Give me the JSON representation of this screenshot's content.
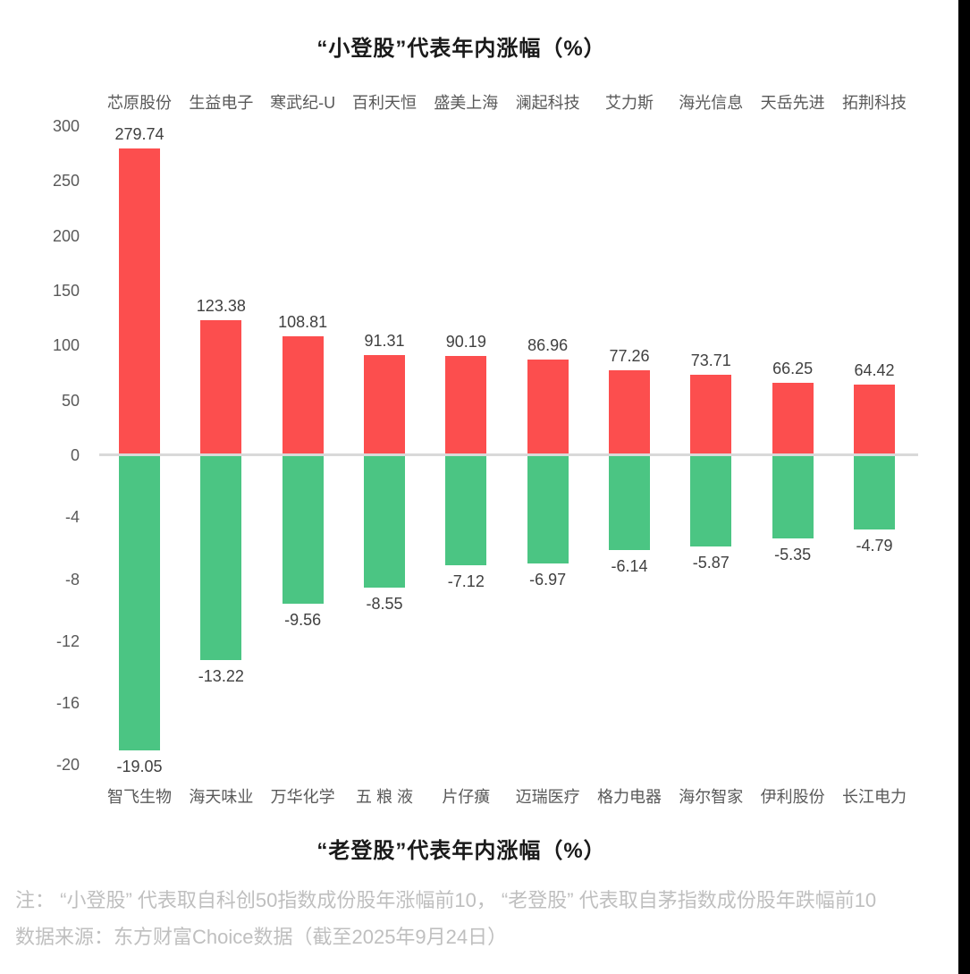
{
  "chart_data": {
    "type": "bar",
    "top_chart": {
      "title": "“小登股”代表年内涨幅（%）",
      "categories": [
        "芯原股份",
        "生益电子",
        "寒武纪-U",
        "百利天恒",
        "盛美上海",
        "澜起科技",
        "艾力斯",
        "海光信息",
        "天岳先进",
        "拓荆科技"
      ],
      "values": [
        279.74,
        123.38,
        108.81,
        91.31,
        90.19,
        86.96,
        77.26,
        73.71,
        66.25,
        64.42
      ],
      "yticks": [
        300,
        250,
        200,
        150,
        100,
        50,
        0
      ],
      "ylim": [
        0,
        300
      ],
      "bar_color": "#fc4e4e",
      "legend_position": "none",
      "grid": false
    },
    "bottom_chart": {
      "title": "“老登股”代表年内涨幅（%）",
      "categories": [
        "智飞生物",
        "海天味业",
        "万华化学",
        "五 粮 液",
        "片仔癀",
        "迈瑞医疗",
        "格力电器",
        "海尔智家",
        "伊利股份",
        "长江电力"
      ],
      "values": [
        -19.05,
        -13.22,
        -9.56,
        -8.55,
        -7.12,
        -6.97,
        -6.14,
        -5.87,
        -5.35,
        -4.79
      ],
      "yticks": [
        -4,
        -8,
        -12,
        -16,
        -20
      ],
      "ylim": [
        -20,
        0
      ],
      "bar_color": "#4bc583",
      "legend_position": "none",
      "grid": false
    },
    "zero_line_color": "#d9d9d9"
  },
  "footer": {
    "note": "注： “小登股” 代表取自科创50指数成份股年涨幅前10， “老登股” 代表取自茅指数成份股年跌幅前10",
    "source": "数据来源：东方财富Choice数据（截至2025年9月24日）"
  }
}
